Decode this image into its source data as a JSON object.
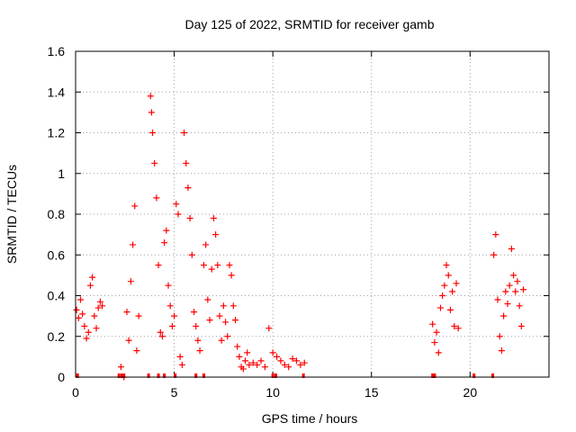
{
  "chart_data": {
    "type": "scatter",
    "title": "Day 125 of 2022, SRMTID for receiver gamb",
    "xlabel": "GPS time / hours",
    "ylabel": "SRMTID / TECUs",
    "xlim": [
      0,
      24
    ],
    "ylim": [
      0,
      1.6
    ],
    "x_ticks": [
      0,
      5,
      10,
      15,
      20
    ],
    "y_ticks": [
      0,
      0.2,
      0.4,
      0.6,
      0.8,
      1,
      1.2,
      1.4,
      1.6
    ],
    "x_tick_labels": [
      "0",
      "5",
      "10",
      "15",
      "20"
    ],
    "y_tick_labels": [
      "0",
      "0.2",
      "0.4",
      "0.6",
      "0.8",
      "1",
      "1.2",
      "1.4",
      "1.6"
    ],
    "grid": true,
    "marker": "+",
    "marker_color": "#ff0000",
    "series": [
      {
        "name": "SRMTID",
        "x": [
          0.05,
          0.15,
          0.25,
          0.35,
          0.45,
          0.55,
          0.65,
          0.75,
          0.85,
          0.95,
          1.05,
          1.15,
          1.25,
          1.35,
          2.3,
          2.45,
          2.6,
          2.7,
          2.8,
          2.9,
          3.0,
          3.1,
          3.2,
          3.8,
          3.85,
          3.9,
          4.0,
          4.1,
          4.2,
          4.3,
          4.4,
          4.5,
          4.6,
          4.7,
          4.8,
          4.9,
          5.0,
          5.1,
          5.2,
          5.3,
          5.4,
          5.5,
          5.6,
          5.7,
          5.8,
          5.9,
          6.0,
          6.1,
          6.2,
          6.3,
          6.5,
          6.6,
          6.7,
          6.8,
          6.9,
          7.0,
          7.1,
          7.2,
          7.3,
          7.4,
          7.5,
          7.6,
          7.7,
          7.8,
          7.9,
          8.0,
          8.1,
          8.2,
          8.3,
          8.4,
          8.5,
          8.6,
          8.7,
          8.8,
          9.0,
          9.2,
          9.4,
          9.6,
          9.8,
          10.0,
          10.2,
          10.4,
          10.6,
          10.8,
          11.0,
          11.2,
          11.4,
          11.6,
          18.1,
          18.2,
          18.3,
          18.4,
          18.5,
          18.6,
          18.7,
          18.8,
          18.9,
          19.0,
          19.1,
          19.2,
          19.3,
          19.4,
          21.2,
          21.3,
          21.4,
          21.5,
          21.6,
          21.7,
          21.8,
          21.9,
          22.0,
          22.1,
          22.2,
          22.3,
          22.4,
          22.5,
          22.6,
          22.7
        ],
        "y": [
          0.33,
          0.29,
          0.38,
          0.31,
          0.25,
          0.19,
          0.22,
          0.45,
          0.49,
          0.3,
          0.24,
          0.34,
          0.37,
          0.35,
          0.05,
          0.0,
          0.32,
          0.18,
          0.47,
          0.65,
          0.84,
          0.13,
          0.3,
          1.38,
          1.3,
          1.2,
          1.05,
          0.88,
          0.55,
          0.22,
          0.2,
          0.66,
          0.72,
          0.45,
          0.35,
          0.25,
          0.3,
          0.85,
          0.8,
          0.1,
          0.06,
          1.2,
          1.05,
          0.93,
          0.78,
          0.6,
          0.32,
          0.25,
          0.18,
          0.13,
          0.55,
          0.65,
          0.38,
          0.28,
          0.53,
          0.78,
          0.7,
          0.55,
          0.3,
          0.18,
          0.35,
          0.27,
          0.2,
          0.55,
          0.5,
          0.35,
          0.28,
          0.15,
          0.1,
          0.05,
          0.04,
          0.08,
          0.12,
          0.06,
          0.07,
          0.06,
          0.08,
          0.05,
          0.24,
          0.12,
          0.1,
          0.08,
          0.06,
          0.05,
          0.09,
          0.08,
          0.06,
          0.07,
          0.26,
          0.17,
          0.22,
          0.12,
          0.34,
          0.4,
          0.45,
          0.55,
          0.5,
          0.33,
          0.42,
          0.25,
          0.46,
          0.24,
          0.6,
          0.7,
          0.38,
          0.2,
          0.13,
          0.3,
          0.42,
          0.36,
          0.45,
          0.63,
          0.5,
          0.42,
          0.47,
          0.35,
          0.25,
          0.43
        ]
      }
    ],
    "zero_markers_x": [
      0.1,
      2.2,
      2.35,
      2.45,
      3.7,
      4.2,
      4.5,
      5.05,
      6.1,
      6.5,
      10.0,
      10.15,
      11.55,
      18.1,
      18.2,
      20.2,
      21.15
    ]
  }
}
